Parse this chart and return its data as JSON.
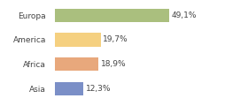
{
  "categories": [
    "Europa",
    "America",
    "Africa",
    "Asia"
  ],
  "values": [
    49.1,
    19.7,
    18.9,
    12.3
  ],
  "labels": [
    "49,1%",
    "19,7%",
    "18,9%",
    "12,3%"
  ],
  "bar_colors": [
    "#aabf7e",
    "#f5d080",
    "#e8a87c",
    "#7b8fc7"
  ],
  "background_color": "#ffffff",
  "xlim": [
    0,
    70
  ],
  "label_fontsize": 6.5,
  "category_fontsize": 6.5,
  "bar_height": 0.55
}
